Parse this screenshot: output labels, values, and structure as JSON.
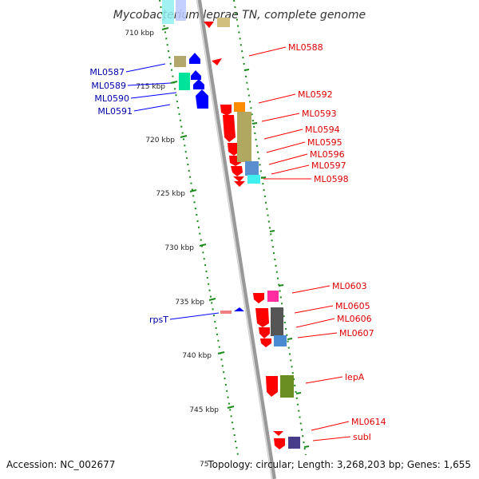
{
  "title": "Mycobacterium leprae TN, complete genome",
  "footer": {
    "accession": "Accession: NC_002677",
    "topology": "Topology: circular; Length: 3,268,203 bp; Genes: 1,655",
    "tick_fragment": "75"
  },
  "colors": {
    "forward": "#ff0000",
    "reverse": "#0000ff",
    "backbone": "#999999",
    "tick": "#1a8a1a"
  },
  "kbp_labels": [
    "710 kbp",
    "715 kbp",
    "720 kbp",
    "725 kbp",
    "730 kbp",
    "735 kbp",
    "740 kbp",
    "745 kbp"
  ],
  "genes_reverse": [
    {
      "label": "ML0587",
      "color": "#0000aa"
    },
    {
      "label": "ML0589",
      "color": "#0000aa"
    },
    {
      "label": "ML0590",
      "color": "#0000aa"
    },
    {
      "label": "ML0591",
      "color": "#0000aa"
    },
    {
      "label": "rpsT",
      "color": "#0000aa"
    }
  ],
  "genes_forward": [
    {
      "label": "ML0588",
      "color": "#dd0000"
    },
    {
      "label": "ML0592",
      "color": "#dd0000"
    },
    {
      "label": "ML0593",
      "color": "#dd0000"
    },
    {
      "label": "ML0594",
      "color": "#dd0000"
    },
    {
      "label": "ML0595",
      "color": "#dd0000"
    },
    {
      "label": "ML0596",
      "color": "#dd0000"
    },
    {
      "label": "ML0597",
      "color": "#dd0000"
    },
    {
      "label": "ML0598",
      "color": "#dd0000"
    },
    {
      "label": "ML0603",
      "color": "#dd0000"
    },
    {
      "label": "ML0605",
      "color": "#dd0000"
    },
    {
      "label": "ML0606",
      "color": "#dd0000"
    },
    {
      "label": "ML0607",
      "color": "#dd0000"
    },
    {
      "label": "lepA",
      "color": "#dd0000"
    },
    {
      "label": "ML0614",
      "color": "#dd0000"
    },
    {
      "label": "subI",
      "color": "#dd0000"
    }
  ]
}
